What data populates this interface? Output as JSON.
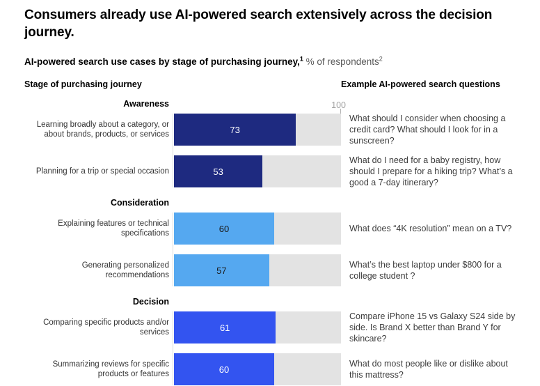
{
  "title": "Consumers already use AI-powered search extensively across the decision journey.",
  "subtitle": {
    "bold_text": "AI-powered search use cases by stage of purchasing journey,",
    "footnote1": "1",
    "regular_text": " % of respondents",
    "footnote2": "2"
  },
  "column_headers": {
    "left": "Stage of purchasing journey",
    "right": "Example AI-powered search questions"
  },
  "colors": {
    "awareness_bar": "#1e2a80",
    "consideration_bar": "#55a8f0",
    "decision_bar": "#3354f0",
    "track": "#e3e3e3",
    "axis_line": "#dcdcdc",
    "axis_label": "#a3a3a3"
  },
  "chart_data": {
    "type": "bar",
    "orientation": "horizontal",
    "unit": "% of respondents",
    "axis_max_label": "100",
    "xlim": [
      0,
      100
    ],
    "sections": [
      {
        "name": "Awareness",
        "color": "#1e2a80",
        "value_text_color": "#ffffff",
        "rows": [
          {
            "label": "Learning broadly about a category, or about brands, products, or services",
            "value": 73,
            "question": "What should I consider when choosing a credit card? What should I look for in a sunscreen?"
          },
          {
            "label": "Planning for a trip or special occasion",
            "value": 53,
            "question": "What do I need for a baby registry, how should I prepare for a hiking trip? What’s a good a 7-day itinerary?"
          }
        ]
      },
      {
        "name": "Consideration",
        "color": "#55a8f0",
        "value_text_color": "#1a1a1a",
        "rows": [
          {
            "label": "Explaining features or technical specifications",
            "value": 60,
            "question": "What does “4K resolution” mean on a TV?"
          },
          {
            "label": "Generating personalized recommendations",
            "value": 57,
            "question": "What’s the best laptop under $800 for a college student ?"
          }
        ]
      },
      {
        "name": "Decision",
        "color": "#3354f0",
        "value_text_color": "#ffffff",
        "rows": [
          {
            "label": "Comparing specific products and/or services",
            "value": 61,
            "question": "Compare iPhone 15 vs Galaxy S24 side by side. Is Brand X better than Brand Y for skincare?"
          },
          {
            "label": "Summarizing reviews for specific products or features",
            "value": 60,
            "question": "What do most people like or dislike about this mattress?"
          }
        ]
      }
    ]
  }
}
